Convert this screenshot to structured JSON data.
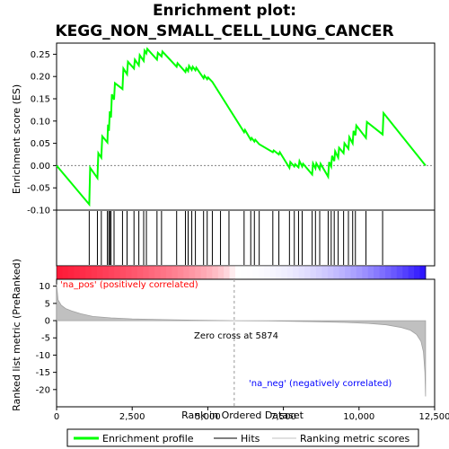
{
  "chart_data": {
    "type": "line",
    "title_line1": "Enrichment plot:",
    "title_line2": "KEGG_NON_SMALL_CELL_LUNG_CANCER",
    "top_panel": {
      "ylabel": "Enrichment score (ES)",
      "ylim": [
        -0.1,
        0.275
      ],
      "yticks": [
        -0.1,
        -0.05,
        0.0,
        0.05,
        0.1,
        0.15,
        0.2,
        0.25
      ],
      "ytick_labels": [
        "-0.10",
        "-0.05",
        "0.00",
        "0.05",
        "0.10",
        "0.15",
        "0.20",
        "0.25"
      ],
      "series": [
        {
          "name": "Enrichment profile",
          "color": "#00ff00",
          "x": [
            0,
            1080,
            1110,
            1350,
            1380,
            1480,
            1510,
            1680,
            1700,
            1730,
            1760,
            1800,
            1830,
            1900,
            1930,
            2180,
            2210,
            2330,
            2360,
            2560,
            2590,
            2720,
            2750,
            2880,
            2910,
            2970,
            3000,
            3320,
            3350,
            3470,
            3500,
            3970,
            4000,
            4260,
            4290,
            4350,
            4380,
            4470,
            4500,
            4590,
            4620,
            4860,
            4890,
            4980,
            5010,
            5150,
            6200,
            6230,
            6420,
            6450,
            6540,
            6570,
            6700,
            7150,
            7180,
            7350,
            7380,
            7700,
            7730,
            7860,
            7890,
            8000,
            8030,
            8120,
            8150,
            8450,
            8480,
            8560,
            8590,
            8700,
            8730,
            8980,
            9010,
            9080,
            9110,
            9180,
            9210,
            9310,
            9340,
            9490,
            9520,
            9650,
            9680,
            9790,
            9820,
            9880,
            9910,
            10230,
            10260,
            10780,
            10810,
            12200
          ],
          "y": [
            0.0,
            -0.087,
            -0.005,
            -0.028,
            0.028,
            0.018,
            0.066,
            0.052,
            0.092,
            0.078,
            0.122,
            0.108,
            0.16,
            0.148,
            0.185,
            0.172,
            0.218,
            0.205,
            0.233,
            0.218,
            0.238,
            0.225,
            0.248,
            0.235,
            0.258,
            0.252,
            0.262,
            0.238,
            0.253,
            0.245,
            0.256,
            0.222,
            0.23,
            0.21,
            0.218,
            0.212,
            0.224,
            0.215,
            0.222,
            0.214,
            0.22,
            0.196,
            0.202,
            0.194,
            0.198,
            0.188,
            0.075,
            0.08,
            0.058,
            0.062,
            0.054,
            0.058,
            0.048,
            0.03,
            0.034,
            0.025,
            0.03,
            -0.005,
            0.008,
            -0.002,
            0.003,
            -0.004,
            0.01,
            -0.002,
            0.004,
            -0.02,
            0.005,
            -0.006,
            0.005,
            -0.008,
            0.004,
            -0.025,
            0.008,
            -0.002,
            0.022,
            0.01,
            0.032,
            0.018,
            0.04,
            0.028,
            0.05,
            0.038,
            0.064,
            0.05,
            0.078,
            0.068,
            0.09,
            0.062,
            0.098,
            0.07,
            0.118,
            0.0
          ]
        }
      ]
    },
    "hits": [
      1080,
      1350,
      1480,
      1680,
      1730,
      1760,
      1800,
      1900,
      2180,
      2330,
      2560,
      2720,
      2880,
      2970,
      3320,
      3470,
      3970,
      4260,
      4350,
      4470,
      4590,
      4860,
      4980,
      5150,
      5420,
      5700,
      6200,
      6420,
      6540,
      6700,
      7150,
      7350,
      7700,
      7860,
      8000,
      8120,
      8450,
      8560,
      8700,
      8980,
      9080,
      9180,
      9310,
      9490,
      9650,
      9790,
      9880,
      10230,
      10780
    ],
    "bottom_panel": {
      "ylabel": "Ranked list metric (PreRanked)",
      "ylim": [
        -25,
        12
      ],
      "yticks": [
        10,
        5,
        0,
        -5,
        -10,
        -15,
        -20
      ],
      "ytick_labels": [
        "10",
        "5",
        "0",
        "-5",
        "-10",
        "-15",
        "-20"
      ],
      "color": "#c0c0c0",
      "zero_cross": 5874,
      "zero_cross_label": "Zero cross at 5874",
      "pos_label": "'na_pos' (positively correlated)",
      "neg_label": "'na_neg' (negatively correlated)",
      "pos_color": "#ff0000",
      "neg_color": "#0000ff",
      "ranked_metric_curve": {
        "x": [
          0,
          50,
          150,
          300,
          500,
          800,
          1200,
          1800,
          2500,
          3500,
          4500,
          5874,
          7000,
          8500,
          9500,
          10300,
          10900,
          11400,
          11700,
          11900,
          12050,
          12130,
          12180,
          12200
        ],
        "y": [
          10.5,
          6.0,
          4.5,
          3.5,
          2.8,
          2.0,
          1.2,
          0.8,
          0.5,
          0.3,
          0.15,
          0.0,
          -0.1,
          -0.3,
          -0.5,
          -0.8,
          -1.2,
          -2.0,
          -2.8,
          -4.0,
          -6.0,
          -9.0,
          -15.0,
          -22.0
        ]
      }
    },
    "xlabel": "Rank in Ordered Dataset",
    "xlim": [
      0,
      12500
    ],
    "xticks": [
      0,
      2500,
      5000,
      7500,
      10000,
      12500
    ],
    "xtick_labels": [
      "0",
      "2,500",
      "5,000",
      "7,500",
      "10,000",
      "12,500"
    ],
    "legend": {
      "items": [
        {
          "label": "Enrichment profile",
          "color": "#00ff00"
        },
        {
          "label": "Hits",
          "color": "#000000"
        },
        {
          "label": "Ranking metric scores",
          "color": "#c0c0c0"
        }
      ],
      "placement": "bottom"
    }
  }
}
